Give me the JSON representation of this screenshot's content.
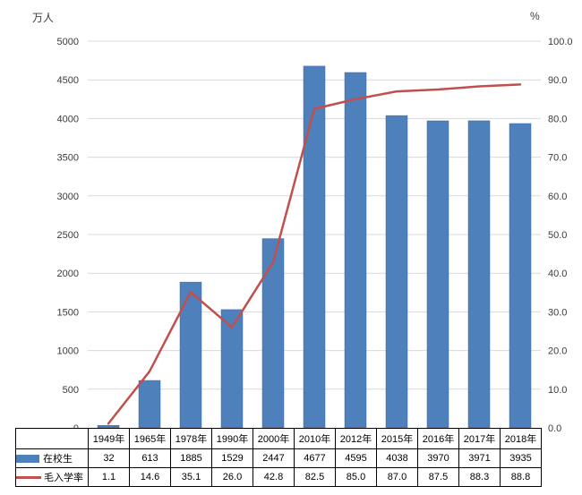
{
  "chart_data": {
    "type": "combo-bar-line",
    "categories": [
      "1949年",
      "1965年",
      "1978年",
      "1990年",
      "2000年",
      "2010年",
      "2012年",
      "2015年",
      "2016年",
      "2017年",
      "2018年"
    ],
    "series": [
      {
        "name": "在校生",
        "chart": "bar",
        "axis": "left",
        "color": "#4E80BC",
        "border_color": "#3C6AA3",
        "values": [
          32,
          613,
          1885,
          1529,
          2447,
          4677,
          4595,
          4038,
          3970,
          3971,
          3935
        ],
        "labels": [
          "32",
          "613",
          "1885",
          "1529",
          "2447",
          "4677",
          "4595",
          "4038",
          "3970",
          "3971",
          "3935"
        ]
      },
      {
        "name": "毛入学率",
        "chart": "line",
        "axis": "right",
        "color": "#C0504D",
        "values": [
          1.1,
          14.6,
          35.1,
          26.0,
          42.8,
          82.5,
          85.0,
          87.0,
          87.5,
          88.3,
          88.8
        ],
        "labels": [
          "1.1",
          "14.6",
          "35.1",
          "26.0",
          "42.8",
          "82.5",
          "85.0",
          "87.0",
          "87.5",
          "88.3",
          "88.8"
        ]
      }
    ],
    "left_axis": {
      "title": "万人",
      "min": 0,
      "max": 5000,
      "ticks": [
        "0",
        "500",
        "1000",
        "1500",
        "2000",
        "2500",
        "3000",
        "3500",
        "4000",
        "4500",
        "5000"
      ]
    },
    "right_axis": {
      "title": "%",
      "min": 0,
      "max": 100,
      "ticks": [
        "0.0",
        "10.0",
        "20.0",
        "30.0",
        "40.0",
        "50.0",
        "60.0",
        "70.0",
        "80.0",
        "90.0",
        "100.0"
      ]
    },
    "grid": true,
    "gridline_color": "#D9D9D9",
    "tick_color": "#3b3b3b",
    "legend_position": "data-table-left"
  }
}
